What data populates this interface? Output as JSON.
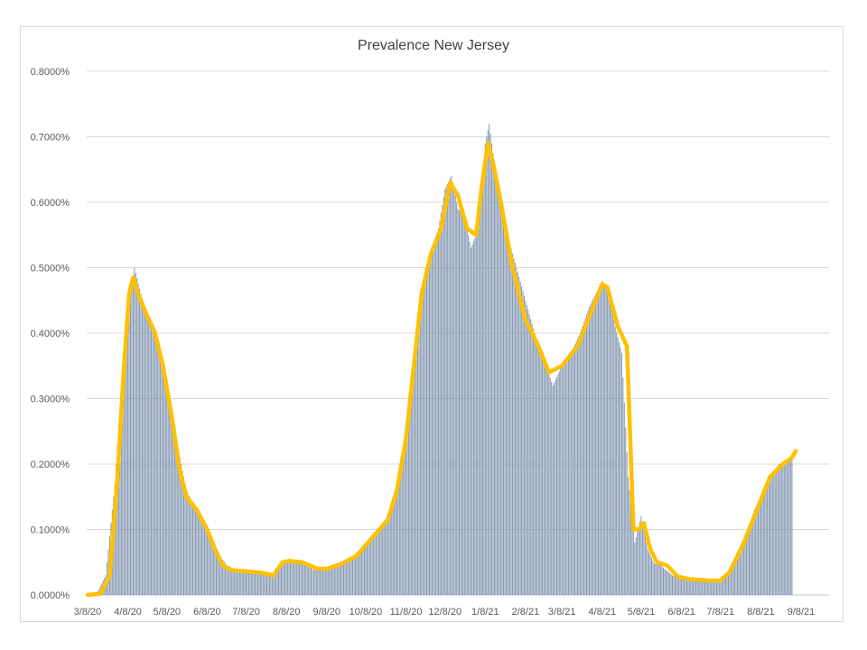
{
  "chart_data": {
    "type": "bar",
    "title": "Prevalence New Jersey",
    "xlabel": "",
    "ylabel": "",
    "ylim": [
      0,
      0.008
    ],
    "y_ticks": [
      "0.0000%",
      "0.1000%",
      "0.2000%",
      "0.3000%",
      "0.4000%",
      "0.5000%",
      "0.6000%",
      "0.7000%",
      "0.8000%"
    ],
    "x_tick_labels": [
      "3/8/20",
      "4/8/20",
      "5/8/20",
      "6/8/20",
      "7/8/20",
      "8/8/20",
      "9/8/20",
      "10/8/20",
      "11/8/20",
      "12/8/20",
      "1/8/21",
      "2/8/21",
      "3/8/21",
      "4/8/21",
      "5/8/21",
      "6/8/21",
      "7/8/21",
      "8/8/21",
      "9/8/21"
    ],
    "x_start": "3/8/20",
    "x_end": "9/8/21",
    "grid": true,
    "legend": "none",
    "colors": {
      "bars": "#8497b0",
      "line": "#ffc000",
      "grid": "#d9d9d9"
    },
    "series": [
      {
        "type": "bar",
        "description": "daily prevalence (fraction)",
        "points": [
          [
            "3/8/20",
            0.0
          ],
          [
            "3/15/20",
            2e-05
          ],
          [
            "3/22/20",
            0.0003
          ],
          [
            "3/29/20",
            0.0017
          ],
          [
            "4/3/20",
            0.0032
          ],
          [
            "4/8/20",
            0.0044
          ],
          [
            "4/13/20",
            0.005
          ],
          [
            "4/18/20",
            0.0046
          ],
          [
            "4/23/20",
            0.0043
          ],
          [
            "4/28/20",
            0.0041
          ],
          [
            "5/3/20",
            0.0036
          ],
          [
            "5/8/20",
            0.0031
          ],
          [
            "5/13/20",
            0.0026
          ],
          [
            "5/18/20",
            0.0021
          ],
          [
            "5/23/20",
            0.0016
          ],
          [
            "5/28/20",
            0.0014
          ],
          [
            "6/3/20",
            0.0012
          ],
          [
            "6/8/20",
            0.001
          ],
          [
            "6/13/20",
            0.0008
          ],
          [
            "6/18/20",
            0.0006
          ],
          [
            "6/23/20",
            0.00045
          ],
          [
            "7/1/20",
            0.00038
          ],
          [
            "7/8/20",
            0.00036
          ],
          [
            "7/15/20",
            0.00034
          ],
          [
            "7/22/20",
            0.00033
          ],
          [
            "7/29/20",
            0.0003
          ],
          [
            "8/3/20",
            0.00045
          ],
          [
            "8/8/20",
            0.00052
          ],
          [
            "8/15/20",
            0.0005
          ],
          [
            "8/22/20",
            0.00047
          ],
          [
            "8/29/20",
            0.00038
          ],
          [
            "9/8/20",
            0.00042
          ],
          [
            "9/15/20",
            0.00047
          ],
          [
            "9/22/20",
            0.00052
          ],
          [
            "10/1/20",
            0.00062
          ],
          [
            "10/8/20",
            0.0008
          ],
          [
            "10/15/20",
            0.00092
          ],
          [
            "10/22/20",
            0.00105
          ],
          [
            "10/29/20",
            0.0014
          ],
          [
            "11/3/20",
            0.0018
          ],
          [
            "11/8/20",
            0.0023
          ],
          [
            "11/13/20",
            0.0033
          ],
          [
            "11/18/20",
            0.0042
          ],
          [
            "11/23/20",
            0.005
          ],
          [
            "11/28/20",
            0.0053
          ],
          [
            "12/3/20",
            0.0056
          ],
          [
            "12/8/20",
            0.0062
          ],
          [
            "12/13/20",
            0.0064
          ],
          [
            "12/18/20",
            0.0059
          ],
          [
            "12/23/20",
            0.0058
          ],
          [
            "12/28/20",
            0.0053
          ],
          [
            "1/3/21",
            0.0056
          ],
          [
            "1/8/21",
            0.0069
          ],
          [
            "1/11/21",
            0.0072
          ],
          [
            "1/15/21",
            0.0066
          ],
          [
            "1/20/21",
            0.006
          ],
          [
            "1/25/21",
            0.0055
          ],
          [
            "2/1/21",
            0.005
          ],
          [
            "2/8/21",
            0.0045
          ],
          [
            "2/15/21",
            0.004
          ],
          [
            "2/22/21",
            0.0036
          ],
          [
            "3/1/21",
            0.0032
          ],
          [
            "3/8/21",
            0.0035
          ],
          [
            "3/15/21",
            0.0037
          ],
          [
            "3/22/21",
            0.004
          ],
          [
            "3/29/21",
            0.0044
          ],
          [
            "4/3/21",
            0.0046
          ],
          [
            "4/8/21",
            0.0048
          ],
          [
            "4/13/21",
            0.0046
          ],
          [
            "4/18/21",
            0.0041
          ],
          [
            "4/23/21",
            0.0037
          ],
          [
            "4/28/21",
            0.0018
          ],
          [
            "5/3/21",
            0.0008
          ],
          [
            "5/8/21",
            0.0012
          ],
          [
            "5/13/21",
            0.0007
          ],
          [
            "5/18/21",
            0.00048
          ],
          [
            "5/23/21",
            0.00045
          ],
          [
            "6/1/21",
            0.0003
          ],
          [
            "6/8/21",
            0.00025
          ],
          [
            "6/15/21",
            0.00022
          ],
          [
            "6/22/21",
            0.00021
          ],
          [
            "7/1/21",
            0.0002
          ],
          [
            "7/8/21",
            0.00022
          ],
          [
            "7/15/21",
            0.0004
          ],
          [
            "7/22/21",
            0.0007
          ],
          [
            "7/29/21",
            0.001
          ],
          [
            "8/3/21",
            0.0013
          ],
          [
            "8/8/21",
            0.0015
          ],
          [
            "8/15/21",
            0.0018
          ],
          [
            "8/22/21",
            0.002
          ],
          [
            "8/29/21",
            0.00205
          ],
          [
            "9/1/21",
            0.0021
          ]
        ]
      },
      {
        "type": "line",
        "description": "smoothed prevalence (fraction)",
        "points": [
          [
            "3/8/20",
            0.0
          ],
          [
            "3/18/20",
            2e-05
          ],
          [
            "3/25/20",
            0.0003
          ],
          [
            "3/31/20",
            0.0018
          ],
          [
            "4/5/20",
            0.0035
          ],
          [
            "4/9/20",
            0.0046
          ],
          [
            "4/12/20",
            0.00485
          ],
          [
            "4/16/20",
            0.0046
          ],
          [
            "4/22/20",
            0.0043
          ],
          [
            "4/29/20",
            0.004
          ],
          [
            "5/5/20",
            0.0035
          ],
          [
            "5/12/20",
            0.0027
          ],
          [
            "5/18/20",
            0.0019
          ],
          [
            "5/23/20",
            0.0015
          ],
          [
            "5/31/20",
            0.0013
          ],
          [
            "6/8/20",
            0.001
          ],
          [
            "6/14/20",
            0.0007
          ],
          [
            "6/20/20",
            0.00045
          ],
          [
            "6/27/20",
            0.00038
          ],
          [
            "7/8/20",
            0.00036
          ],
          [
            "7/20/20",
            0.00034
          ],
          [
            "7/29/20",
            0.0003
          ],
          [
            "8/5/20",
            0.0005
          ],
          [
            "8/10/20",
            0.00052
          ],
          [
            "8/20/20",
            0.0005
          ],
          [
            "9/1/20",
            0.0004
          ],
          [
            "9/8/20",
            0.0004
          ],
          [
            "9/20/20",
            0.00048
          ],
          [
            "10/1/20",
            0.0006
          ],
          [
            "10/12/20",
            0.00085
          ],
          [
            "10/25/20",
            0.00115
          ],
          [
            "11/1/20",
            0.0016
          ],
          [
            "11/8/20",
            0.0024
          ],
          [
            "11/14/20",
            0.0035
          ],
          [
            "11/20/20",
            0.0046
          ],
          [
            "11/27/20",
            0.0052
          ],
          [
            "12/5/20",
            0.0056
          ],
          [
            "12/12/20",
            0.0063
          ],
          [
            "12/18/20",
            0.0061
          ],
          [
            "12/25/20",
            0.0056
          ],
          [
            "1/1/21",
            0.0055
          ],
          [
            "1/5/21",
            0.0062
          ],
          [
            "1/10/21",
            0.0069
          ],
          [
            "1/14/21",
            0.0066
          ],
          [
            "1/20/21",
            0.006
          ],
          [
            "1/29/21",
            0.005
          ],
          [
            "2/8/21",
            0.0042
          ],
          [
            "2/18/21",
            0.0038
          ],
          [
            "2/26/21",
            0.0034
          ],
          [
            "3/8/21",
            0.0035
          ],
          [
            "3/20/21",
            0.0038
          ],
          [
            "4/1/21",
            0.0044
          ],
          [
            "4/8/21",
            0.00475
          ],
          [
            "4/12/21",
            0.0047
          ],
          [
            "4/20/21",
            0.0041
          ],
          [
            "4/27/21",
            0.0038
          ],
          [
            "5/2/21",
            0.001
          ],
          [
            "5/6/21",
            0.001
          ],
          [
            "5/10/21",
            0.0011
          ],
          [
            "5/15/21",
            0.0007
          ],
          [
            "5/20/21",
            0.0005
          ],
          [
            "5/28/21",
            0.00045
          ],
          [
            "6/5/21",
            0.00028
          ],
          [
            "6/15/21",
            0.00024
          ],
          [
            "6/30/21",
            0.00022
          ],
          [
            "7/8/21",
            0.00022
          ],
          [
            "7/15/21",
            0.00035
          ],
          [
            "7/25/21",
            0.00075
          ],
          [
            "8/5/21",
            0.0013
          ],
          [
            "8/15/21",
            0.0018
          ],
          [
            "8/25/21",
            0.002
          ],
          [
            "9/1/21",
            0.0021
          ],
          [
            "9/4/21",
            0.0022
          ]
        ]
      }
    ]
  }
}
